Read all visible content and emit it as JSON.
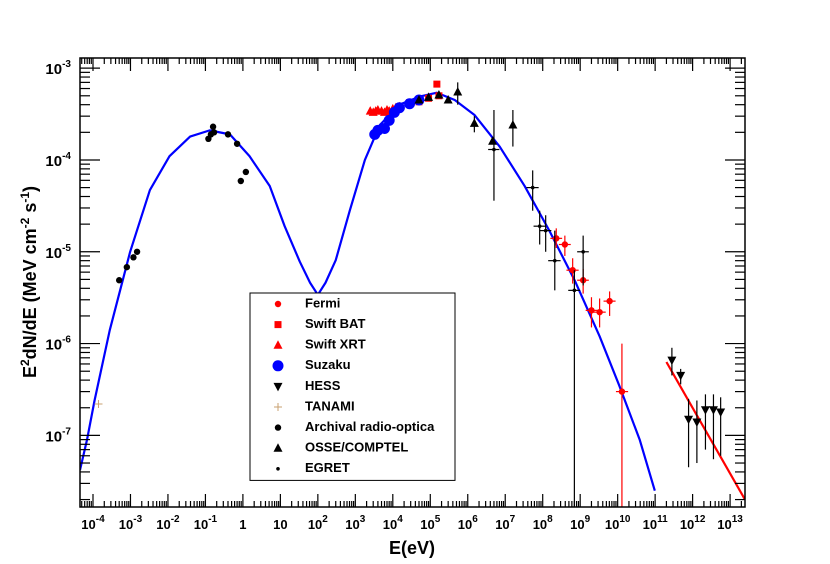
{
  "chart_data": {
    "type": "scatter",
    "log_x": true,
    "log_y": true,
    "x_label": "E(eV)",
    "y_label_parts": [
      {
        "text": "E"
      },
      {
        "text": "2",
        "sup": true
      },
      {
        "text": "dN/dE (MeV cm"
      },
      {
        "text": "-2",
        "sup": true
      },
      {
        "text": " s"
      },
      {
        "text": "-1",
        "sup": true
      },
      {
        "text": ")"
      }
    ],
    "xlim": [
      4.5e-05,
      25000000000000.0
    ],
    "ylim": [
      1.66e-08,
      0.00129
    ],
    "xticks": [
      {
        "value": 0.0001,
        "label": "10",
        "exp": "-4"
      },
      {
        "value": 0.001,
        "label": "10",
        "exp": "-3"
      },
      {
        "value": 0.01,
        "label": "10",
        "exp": "-2"
      },
      {
        "value": 0.1,
        "label": "10",
        "exp": "-1"
      },
      1,
      10,
      {
        "value": 100.0,
        "label": "10",
        "exp": "2"
      },
      {
        "value": 1000.0,
        "label": "10",
        "exp": "3"
      },
      {
        "value": 10000.0,
        "label": "10",
        "exp": "4"
      },
      {
        "value": 100000.0,
        "label": "10",
        "exp": "5"
      },
      {
        "value": 1000000.0,
        "label": "10",
        "exp": "6"
      },
      {
        "value": 10000000.0,
        "label": "10",
        "exp": "7"
      },
      {
        "value": 100000000.0,
        "label": "10",
        "exp": "8"
      },
      {
        "value": 1000000000.0,
        "label": "10",
        "exp": "9"
      },
      {
        "value": 10000000000.0,
        "label": "10",
        "exp": "10"
      },
      {
        "value": 100000000000.0,
        "label": "10",
        "exp": "11"
      },
      {
        "value": 1000000000000.0,
        "label": "10",
        "exp": "12"
      },
      {
        "value": 10000000000000.0,
        "label": "10",
        "exp": "13"
      }
    ],
    "yticks": [
      {
        "value": 1e-07,
        "label": "10",
        "exp": "-7"
      },
      {
        "value": 1e-06,
        "label": "10",
        "exp": "-6"
      },
      {
        "value": 1e-05,
        "label": "10",
        "exp": "-5"
      },
      {
        "value": 0.0001,
        "label": "10",
        "exp": "-4"
      },
      {
        "value": 0.001,
        "label": "10",
        "exp": "-3"
      }
    ],
    "legend": "lower center",
    "series": [
      {
        "name": "Fermi",
        "color": "#ff0000",
        "marker": "circle",
        "x": [
          230000000.0,
          390000000.0,
          630000000.0,
          1200000000.0,
          2000000000.0,
          3300000000.0,
          6100000000.0,
          13000000000.0
        ],
        "values": [
          1.4e-05,
          1.2e-05,
          6.3e-06,
          4.9e-06,
          2.3e-06,
          2.2e-06,
          2.9e-06,
          3e-07
        ],
        "y_low": [
          1.1e-05,
          9e-06,
          4.5e-06,
          3.5e-06,
          1.5e-06,
          1.5e-06,
          2e-06,
          1e-08
        ],
        "y_high": [
          1.8e-05,
          1.5e-05,
          8.5e-06,
          6.5e-06,
          3.2e-06,
          3.1e-06,
          3.7e-06,
          1e-06
        ],
        "x_low": [
          160000000.0,
          270000000.0,
          430000000.0,
          830000000.0,
          1400000000.0,
          2300000000.0,
          4200000000.0,
          9000000000.0
        ],
        "x_high": [
          330000000.0,
          560000000.0,
          910000000.0,
          1700000000.0,
          2900000000.0,
          4800000000.0,
          8800000000.0,
          19000000000.0
        ]
      },
      {
        "name": "Swift BAT",
        "color": "#ff0000",
        "marker": "square",
        "x": [
          28000.0,
          50000.0,
          90000.0,
          150000.0,
          170000.0
        ],
        "values": [
          0.00042,
          0.00043,
          0.00047,
          0.00067,
          0.0005
        ]
      },
      {
        "name": "Swift XRT",
        "color": "#ff0000",
        "marker": "triangle-up",
        "x": [
          2500.0,
          3000.0,
          3500.0,
          4000.0,
          5000.0,
          6000.0,
          7000.0,
          8000.0,
          10000.0,
          12000.0,
          15000.0
        ],
        "values": [
          0.00034,
          0.00033,
          0.00034,
          0.00035,
          0.00034,
          0.00033,
          0.00035,
          0.00034,
          0.00036,
          0.00037,
          0.00038
        ]
      },
      {
        "name": "Suzaku",
        "color": "#0000ff",
        "marker": "big-circle",
        "x": [
          3300.0,
          4000.0,
          6000.0,
          8000.0,
          11000.0,
          15000.0,
          28000.0,
          50000.0
        ],
        "values": [
          0.00019,
          0.00021,
          0.00022,
          0.00027,
          0.00033,
          0.00037,
          0.00041,
          0.00045
        ]
      },
      {
        "name": "HESS",
        "color": "#000000",
        "marker": "triangle-down",
        "x": [
          280000000000.0,
          480000000000.0,
          780000000000.0,
          1300000000000.0,
          2200000000000.0,
          3600000000000.0,
          5600000000000.0
        ],
        "values": [
          6.6e-07,
          4.5e-07,
          1.5e-07,
          1.4e-07,
          1.9e-07,
          1.9e-07,
          1.8e-07
        ],
        "y_low": [
          4.5e-07,
          3.6e-07,
          4.5e-08,
          5e-08,
          7e-08,
          5.5e-08,
          6e-08
        ],
        "y_high": [
          9e-07,
          5.3e-07,
          2.5e-07,
          2.4e-07,
          2.8e-07,
          2.8e-07,
          2.6e-07
        ]
      },
      {
        "name": "TANAMI",
        "color": "#c8a070",
        "marker": "plus",
        "x": [
          0.00014
        ],
        "values": [
          2.2e-07
        ]
      },
      {
        "name": "Archival radio-optica",
        "color": "#000000",
        "marker": "circle",
        "x": [
          0.0005,
          0.0008,
          0.0012,
          0.0015,
          0.12,
          0.14,
          0.16,
          0.17,
          0.4,
          0.7,
          0.88,
          1.2
        ],
        "values": [
          4.9e-06,
          6.8e-06,
          8.7e-06,
          1e-05,
          0.00017,
          0.00019,
          0.00023,
          0.0002,
          0.00019,
          0.00015,
          5.9e-05,
          7.4e-05
        ]
      },
      {
        "name": "OSSE/COMPTEL",
        "color": "#000000",
        "marker": "triangle-up",
        "x": [
          50000.0,
          90000.0,
          170000.0,
          300000.0,
          540000.0,
          1500000.0,
          4600000.0,
          16000000.0
        ],
        "values": [
          0.00045,
          0.00048,
          0.00051,
          0.00045,
          0.00055,
          0.00025,
          0.00016,
          0.00024
        ],
        "y_low": [
          null,
          null,
          null,
          null,
          0.0004,
          0.0002,
          null,
          0.00014
        ],
        "y_high": [
          null,
          null,
          null,
          null,
          0.0007,
          0.0003,
          null,
          0.00035
        ]
      },
      {
        "name": "EGRET",
        "color": "#000000",
        "marker": "dot",
        "x": [
          5000000.0,
          54000000.0,
          83000000.0,
          120000000.0,
          210000000.0,
          700000000.0,
          1200000000.0
        ],
        "values": [
          0.00013,
          5e-05,
          1.9e-05,
          1.7e-05,
          8e-06,
          3.8e-06,
          1e-05
        ],
        "y_low": [
          3.6e-05,
          2.8e-05,
          1.2e-05,
          1e-05,
          3.8e-06,
          1e-08,
          4.3e-06
        ],
        "y_high": [
          0.00035,
          7.7e-05,
          2.8e-05,
          2.5e-05,
          1.7e-05,
          6.3e-06,
          1.5e-05
        ],
        "x_low": [
          3500000.0,
          37000000.0,
          57000000.0,
          83000000.0,
          140000000.0,
          480000000.0,
          830000000.0
        ],
        "x_high": [
          7000000.0,
          78000000.0,
          120000000.0,
          170000000.0,
          300000000.0,
          1000000000.0,
          1700000000.0
        ]
      }
    ],
    "curves": [
      {
        "color": "#0000ff",
        "x": [
          4.5e-05,
          6.9e-05,
          0.00011,
          0.00028,
          0.00098,
          0.0033,
          0.011,
          0.039,
          0.13,
          0.45,
          1.5,
          5.2,
          13,
          33,
          62,
          100,
          160,
          300,
          710,
          1800,
          4500,
          15000,
          52000,
          150000,
          450000,
          1500000.0,
          7100000.0,
          33000000.0,
          150000000.0,
          710000000.0,
          3300000000.0,
          11000000000.0,
          39000000000.0,
          98000000000.0
        ],
        "values": [
          4.2e-08,
          8.9e-08,
          2.4e-07,
          1.4e-06,
          1e-05,
          4.7e-05,
          0.00011,
          0.00018,
          0.00021,
          0.00019,
          0.00011,
          5.2e-05,
          1.9e-05,
          7.8e-06,
          4.6e-06,
          3.4e-06,
          4.6e-06,
          8.1e-06,
          2.8e-05,
          0.0001,
          0.00024,
          0.0004,
          0.00049,
          0.00054,
          0.00045,
          0.00031,
          0.00014,
          5.2e-05,
          1.7e-05,
          4.9e-06,
          1.2e-06,
          3.5e-07,
          8.9e-08,
          2.5e-08
        ]
      },
      {
        "color": "#ff0000",
        "x": [
          200000000000.0,
          25000000000000.0
        ],
        "values": [
          6.3e-07,
          2e-08
        ]
      }
    ]
  }
}
